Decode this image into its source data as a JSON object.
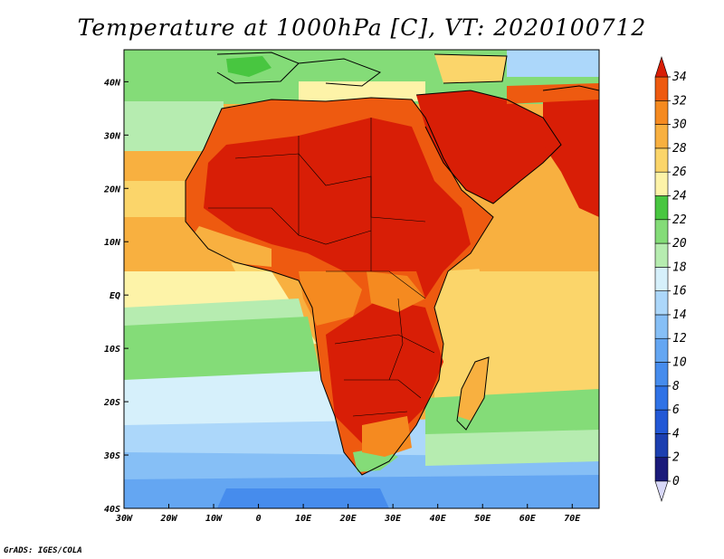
{
  "title": "Temperature at 1000hPa [C], VT: 2020100712",
  "credit": "GrADS: IGES/COLA",
  "map": {
    "lon_range": [
      -30,
      76
    ],
    "lat_range": [
      -40,
      46
    ],
    "x_ticks": [
      "30W",
      "20W",
      "10W",
      "0",
      "10E",
      "20E",
      "30E",
      "40E",
      "50E",
      "60E",
      "70E"
    ],
    "y_ticks": [
      "40S",
      "30S",
      "20S",
      "10S",
      "EQ",
      "10N",
      "20N",
      "30N",
      "40N"
    ]
  },
  "colorbar": {
    "labels": [
      "0",
      "2",
      "4",
      "6",
      "8",
      "10",
      "12",
      "14",
      "16",
      "18",
      "20",
      "22",
      "24",
      "26",
      "28",
      "30",
      "32",
      "34"
    ],
    "colors": [
      "#1a1a7a",
      "#1c3fb0",
      "#2258d6",
      "#2f72e6",
      "#468ced",
      "#64a6f2",
      "#86bff6",
      "#acd7fa",
      "#d6f0fb",
      "#b6ecb0",
      "#84dc78",
      "#48c640",
      "#fdf3a8",
      "#fbd56a",
      "#f8b040",
      "#f58a20",
      "#ee5a10",
      "#d81e06"
    ],
    "under_color": "#d8d8f8",
    "over_color": "#d81e06"
  }
}
